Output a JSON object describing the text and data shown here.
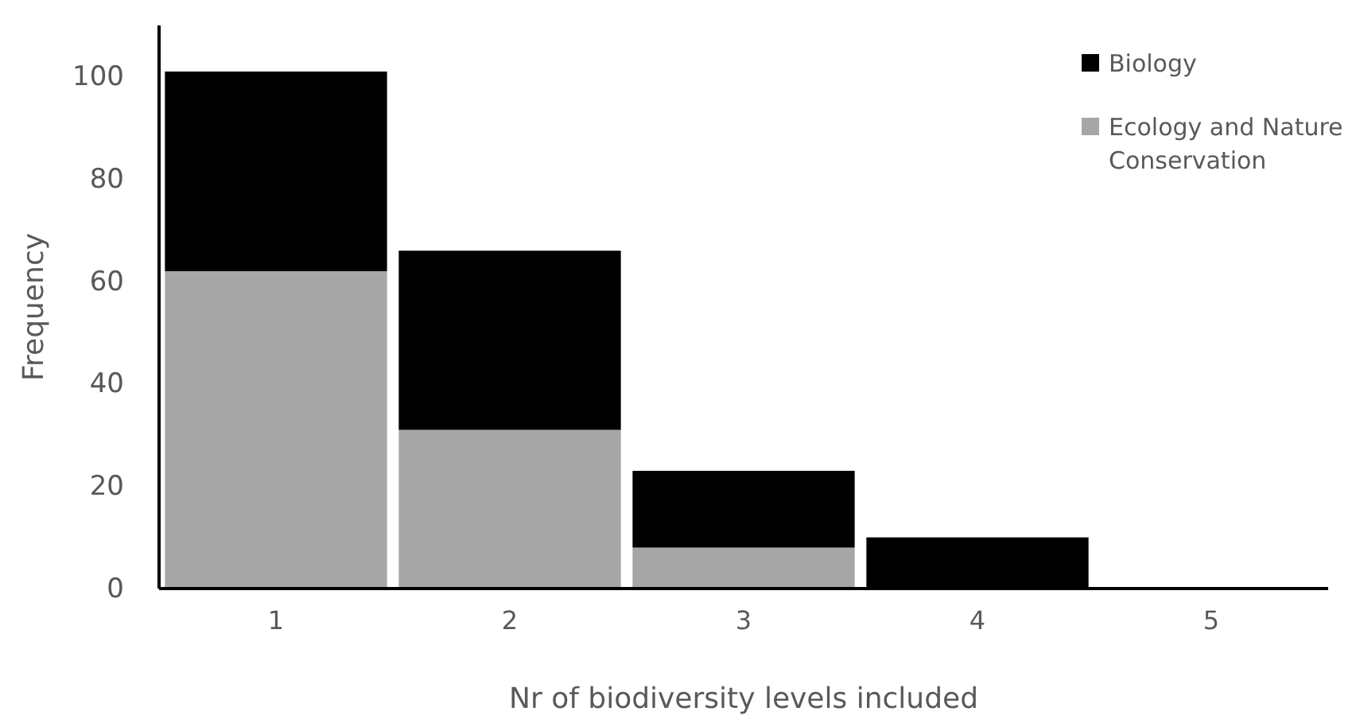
{
  "chart_data": {
    "type": "bar",
    "stacked": true,
    "xlabel": "Nr of biodiversity levels included",
    "ylabel": "Frequency",
    "categories": [
      "1",
      "2",
      "3",
      "4",
      "5"
    ],
    "series": [
      {
        "name": "Ecology and Nature Conservation",
        "color": "#a6a6a6",
        "values": [
          62,
          31,
          8,
          0,
          0
        ]
      },
      {
        "name": "Biology",
        "color": "#000000",
        "values": [
          39,
          35,
          15,
          10,
          0
        ]
      }
    ],
    "ylim": [
      0,
      110
    ],
    "yticks": [
      0,
      20,
      40,
      60,
      80,
      100
    ],
    "grid": false,
    "legend": "top right"
  }
}
